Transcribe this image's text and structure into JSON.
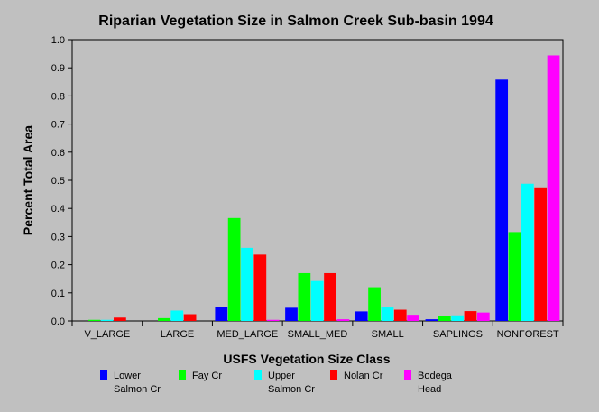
{
  "chart_data": {
    "type": "bar",
    "title": "Riparian Vegetation Size in Salmon Creek Sub-basin 1994",
    "xlabel": "USFS Vegetation Size Class",
    "ylabel": "Percent Total Area",
    "ylim": [
      0,
      1.0
    ],
    "yticks": [
      "0.0",
      "0.1",
      "0.2",
      "0.3",
      "0.4",
      "0.5",
      "0.6",
      "0.7",
      "0.8",
      "0.9",
      "1.0"
    ],
    "grid": false,
    "legend_position": "bottom",
    "categories": [
      "V_LARGE",
      "LARGE",
      "MED_LARGE",
      "SMALL_MED",
      "SMALL",
      "SAPLINGS",
      "NONFOREST"
    ],
    "series": [
      {
        "name": "Lower Salmon Cr",
        "legend_lines": [
          "Lower",
          "Salmon Cr"
        ],
        "color": "#0000ff",
        "values": [
          0.0,
          0.0,
          0.05,
          0.047,
          0.034,
          0.006,
          0.858
        ]
      },
      {
        "name": "Fay Cr",
        "legend_lines": [
          "Fay Cr"
        ],
        "color": "#00ff00",
        "values": [
          0.004,
          0.01,
          0.366,
          0.17,
          0.12,
          0.018,
          0.316
        ]
      },
      {
        "name": "Upper Salmon Cr",
        "legend_lines": [
          "Upper",
          "Salmon Cr"
        ],
        "color": "#00ffff",
        "values": [
          0.004,
          0.037,
          0.26,
          0.142,
          0.048,
          0.02,
          0.488
        ]
      },
      {
        "name": "Nolan Cr",
        "legend_lines": [
          "Nolan Cr"
        ],
        "color": "#ff0000",
        "values": [
          0.012,
          0.024,
          0.236,
          0.17,
          0.04,
          0.035,
          0.475
        ]
      },
      {
        "name": "Bodega Head",
        "legend_lines": [
          "Bodega",
          "Head"
        ],
        "color": "#ff00ff",
        "values": [
          0.0,
          0.0,
          0.004,
          0.006,
          0.022,
          0.03,
          0.944
        ]
      }
    ]
  }
}
